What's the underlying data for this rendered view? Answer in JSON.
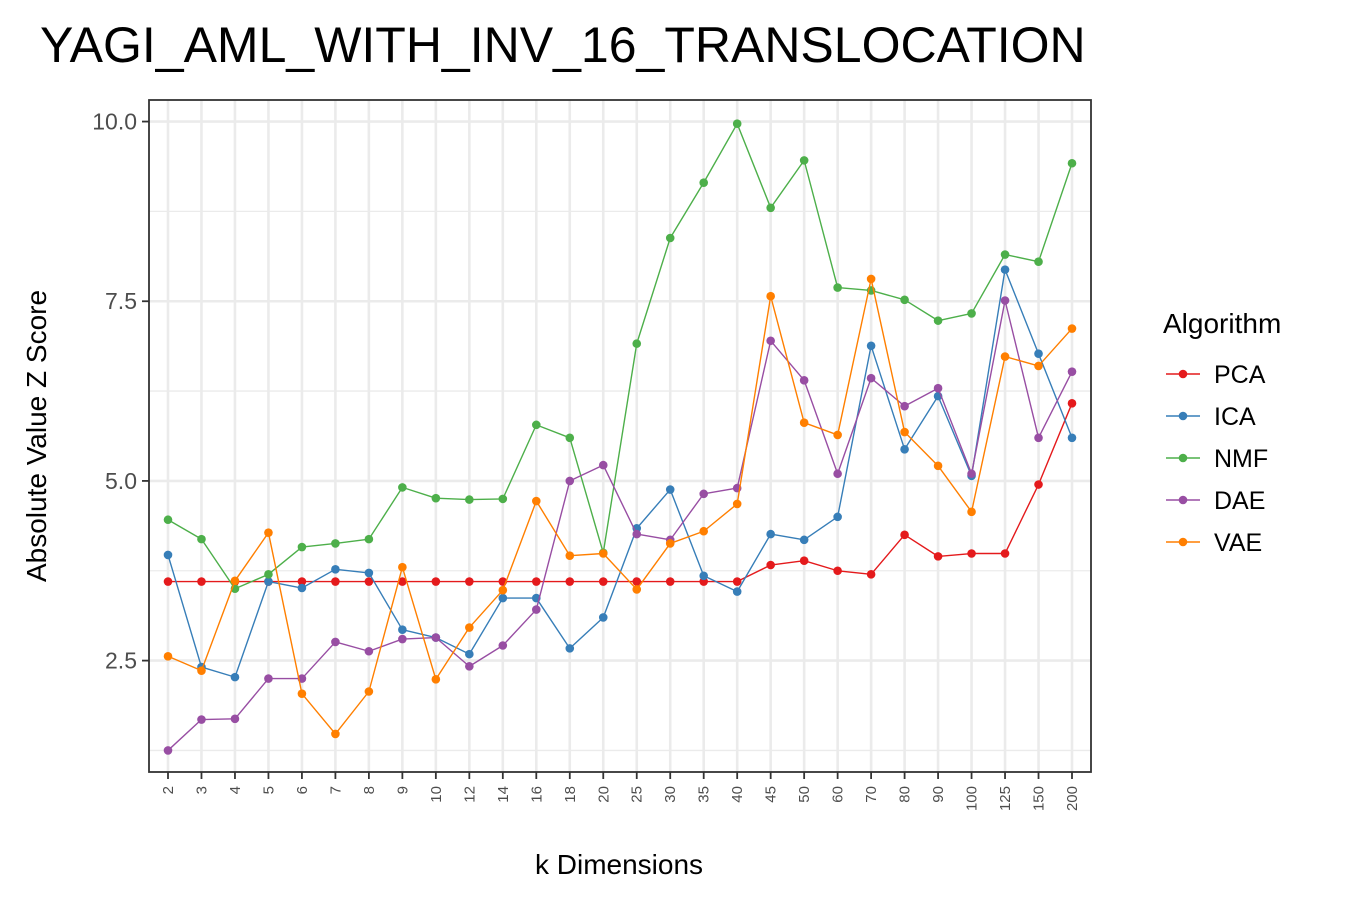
{
  "chart_data": {
    "type": "line",
    "title": "YAGI_AML_WITH_INV_16_TRANSLOCATION",
    "xlabel": "k Dimensions",
    "ylabel": "Absolute Value Z Score",
    "categories": [
      "2",
      "3",
      "4",
      "5",
      "6",
      "7",
      "8",
      "9",
      "10",
      "12",
      "14",
      "16",
      "18",
      "20",
      "25",
      "30",
      "35",
      "40",
      "45",
      "50",
      "60",
      "70",
      "80",
      "90",
      "100",
      "125",
      "150",
      "200"
    ],
    "ylim": [
      0.95,
      10.3
    ],
    "yticks": [
      2.5,
      5.0,
      7.5,
      10.0
    ],
    "ytick_labels": [
      "2.5",
      "5.0",
      "7.5",
      "10.0"
    ],
    "grid": true,
    "legend": {
      "title": "Algorithm",
      "position": "right"
    },
    "series": [
      {
        "name": "PCA",
        "color": "#e41a1c",
        "values": [
          3.6,
          3.6,
          3.6,
          3.6,
          3.6,
          3.6,
          3.6,
          3.6,
          3.6,
          3.6,
          3.6,
          3.6,
          3.6,
          3.6,
          3.6,
          3.6,
          3.6,
          3.6,
          3.83,
          3.89,
          3.75,
          3.7,
          4.25,
          3.95,
          3.99,
          3.99,
          4.95,
          6.08
        ]
      },
      {
        "name": "ICA",
        "color": "#377eb8",
        "values": [
          3.97,
          2.41,
          2.27,
          3.6,
          3.51,
          3.77,
          3.72,
          2.93,
          2.82,
          2.59,
          3.37,
          3.37,
          2.67,
          3.1,
          4.34,
          4.88,
          3.68,
          3.46,
          4.26,
          4.18,
          4.5,
          6.88,
          5.44,
          6.18,
          5.07,
          7.94,
          6.77,
          5.6
        ]
      },
      {
        "name": "NMF",
        "color": "#4daf4a",
        "values": [
          4.46,
          4.19,
          3.5,
          3.7,
          4.08,
          4.13,
          4.19,
          4.91,
          4.76,
          4.74,
          4.75,
          5.78,
          5.6,
          4.0,
          6.91,
          8.38,
          9.15,
          9.97,
          8.8,
          9.46,
          7.69,
          7.65,
          7.52,
          7.23,
          7.33,
          8.15,
          8.05,
          9.42
        ]
      },
      {
        "name": "DAE",
        "color": "#984ea3",
        "values": [
          1.25,
          1.68,
          1.69,
          2.25,
          2.25,
          2.76,
          2.63,
          2.8,
          2.82,
          2.42,
          2.71,
          3.21,
          5.0,
          5.22,
          4.26,
          4.18,
          4.82,
          4.9,
          6.95,
          6.4,
          5.1,
          6.43,
          6.04,
          6.29,
          5.1,
          7.51,
          5.6,
          6.52
        ]
      },
      {
        "name": "VAE",
        "color": "#ff7f00",
        "values": [
          2.56,
          2.36,
          3.61,
          4.28,
          2.04,
          1.48,
          2.07,
          3.8,
          2.24,
          2.96,
          3.48,
          4.72,
          3.96,
          3.99,
          3.49,
          4.13,
          4.3,
          4.68,
          7.57,
          5.81,
          5.64,
          7.81,
          5.68,
          5.21,
          4.57,
          6.73,
          6.6,
          7.12
        ]
      }
    ]
  }
}
